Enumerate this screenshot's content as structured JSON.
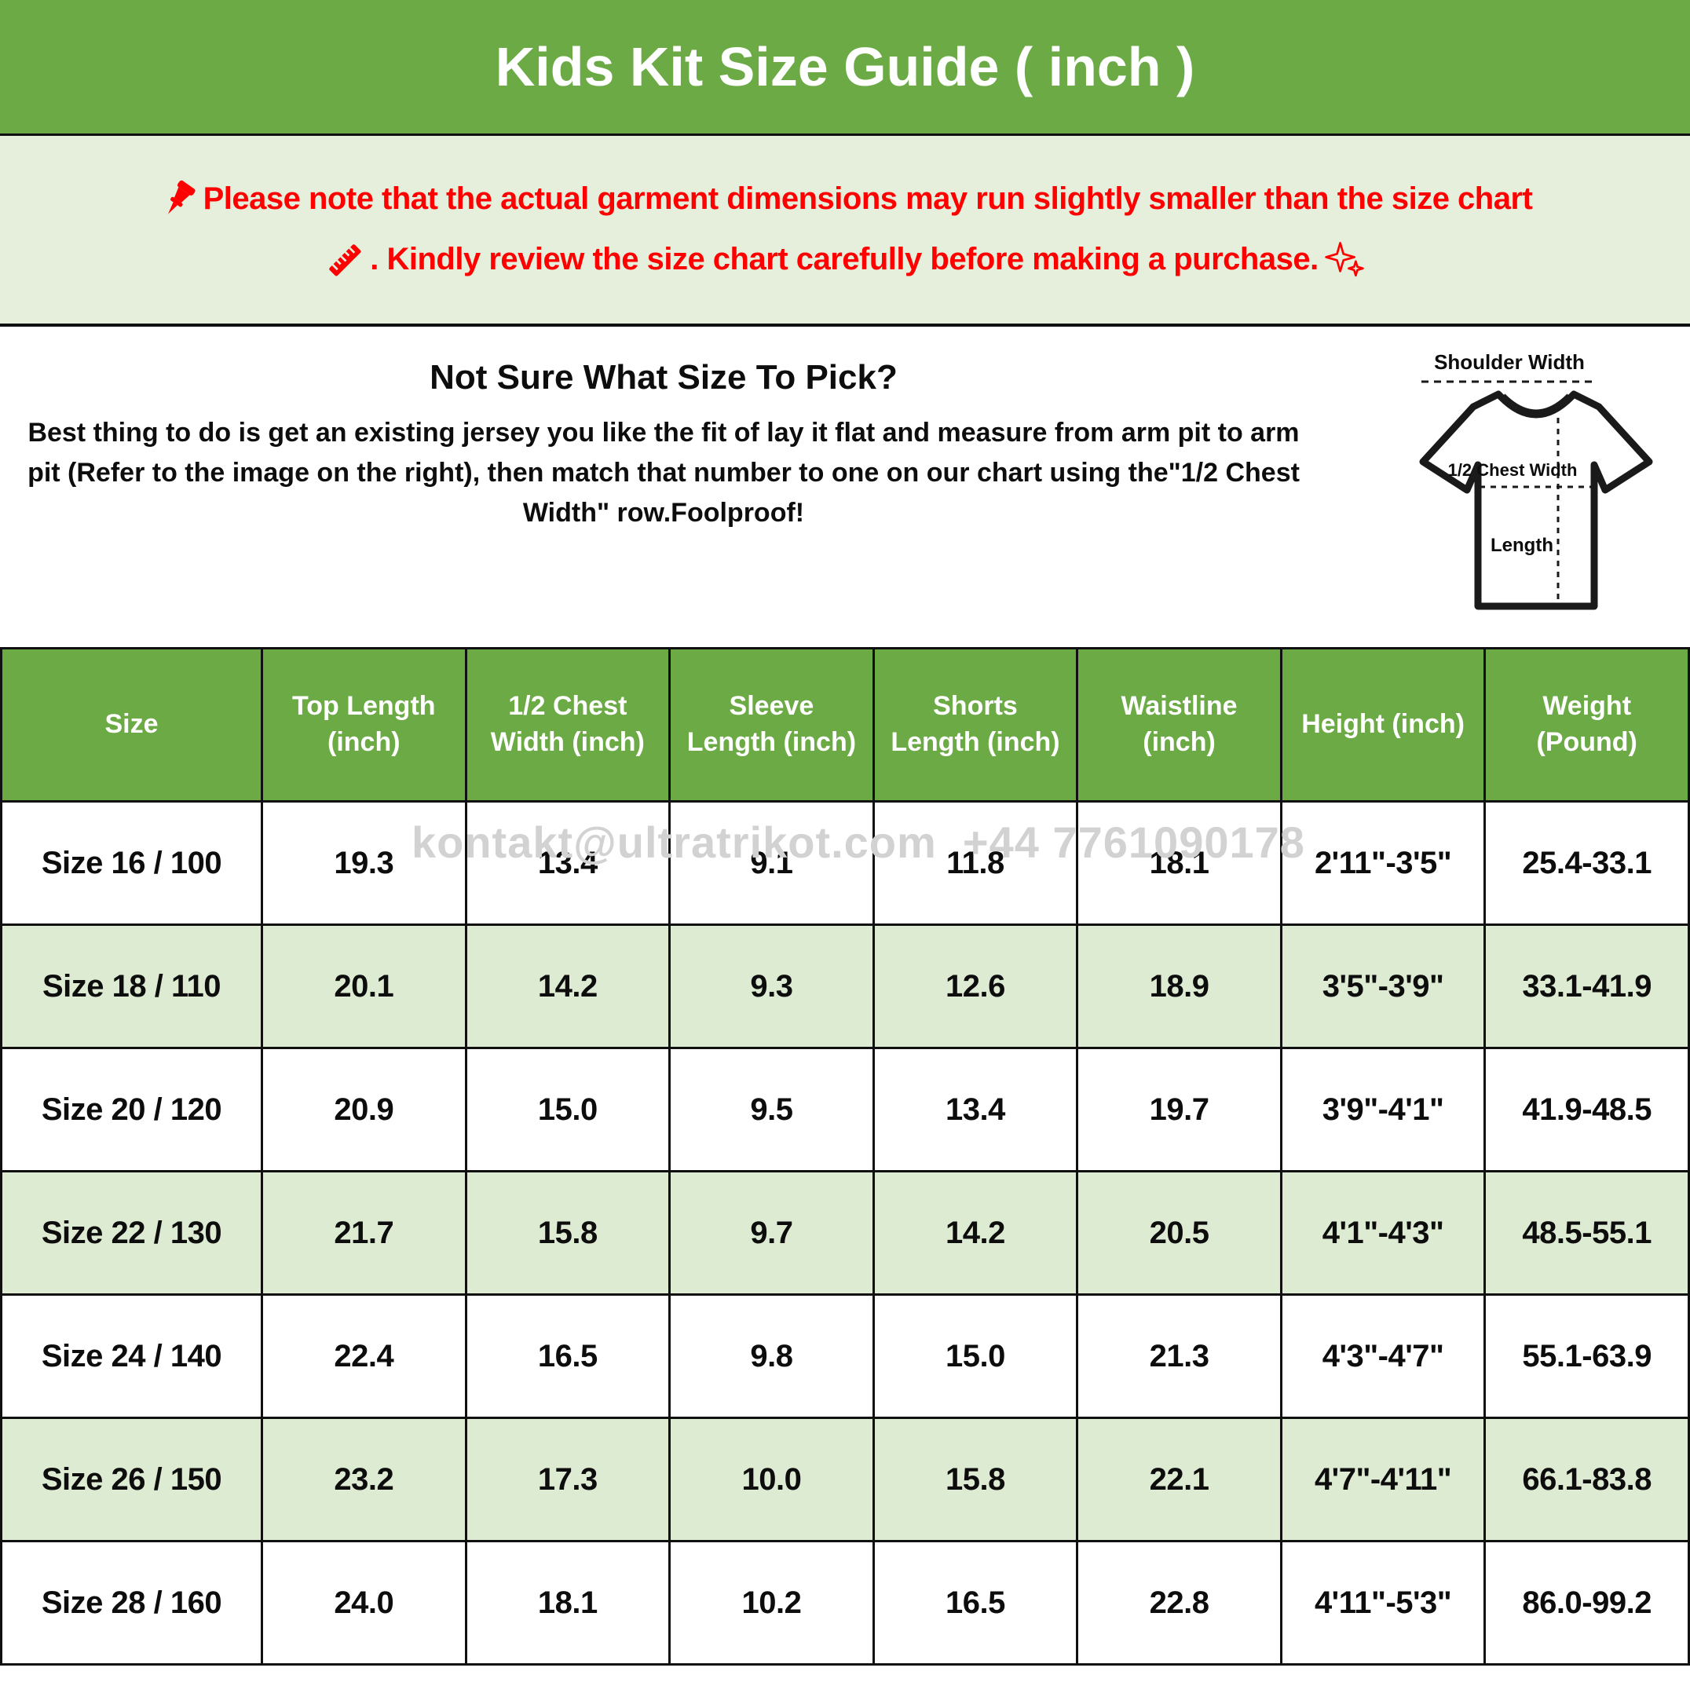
{
  "page": {
    "title": "Kids Kit Size Guide ( inch )"
  },
  "notice": {
    "line1": "Please note that the actual garment dimensions may run slightly smaller than the size chart",
    "line2": ". Kindly review the size chart carefully before making a purchase."
  },
  "info": {
    "heading": "Not Sure What Size To Pick?",
    "body": "Best thing to do is get an existing jersey you like the fit of lay it flat and measure from arm pit to arm pit (Refer to the image on the right), then match that number to one on our chart using the\"1/2 Chest Width\" row.Foolproof!"
  },
  "diagram": {
    "shoulder_label": "Shoulder Width",
    "chest_label": "1/2 Chest Width",
    "length_label": "Length"
  },
  "watermark": "kontakt@ultratrikot.com  +44 7761090178",
  "colors": {
    "header_green": "#6caa46",
    "notice_bg": "#e5efdc",
    "row_alt_bg": "#deebd3",
    "accent_red": "#fe0000",
    "watermark_gray": "#d2d2d2"
  },
  "size_table": {
    "columns": [
      "Size",
      "Top Length (inch)",
      "1/2 Chest Width (inch)",
      "Sleeve Length (inch)",
      "Shorts Length (inch)",
      "Waistline (inch)",
      "Height (inch)",
      "Weight (Pound)"
    ],
    "rows": [
      [
        "Size 16 / 100",
        "19.3",
        "13.4",
        "9.1",
        "11.8",
        "18.1",
        "2'11\"-3'5\"",
        "25.4-33.1"
      ],
      [
        "Size 18 / 110",
        "20.1",
        "14.2",
        "9.3",
        "12.6",
        "18.9",
        "3'5\"-3'9\"",
        "33.1-41.9"
      ],
      [
        "Size 20 / 120",
        "20.9",
        "15.0",
        "9.5",
        "13.4",
        "19.7",
        "3'9\"-4'1\"",
        "41.9-48.5"
      ],
      [
        "Size 22 / 130",
        "21.7",
        "15.8",
        "9.7",
        "14.2",
        "20.5",
        "4'1\"-4'3\"",
        "48.5-55.1"
      ],
      [
        "Size 24 / 140",
        "22.4",
        "16.5",
        "9.8",
        "15.0",
        "21.3",
        "4'3\"-4'7\"",
        "55.1-63.9"
      ],
      [
        "Size 26 / 150",
        "23.2",
        "17.3",
        "10.0",
        "15.8",
        "22.1",
        "4'7\"-4'11\"",
        "66.1-83.8"
      ],
      [
        "Size 28 / 160",
        "24.0",
        "18.1",
        "10.2",
        "16.5",
        "22.8",
        "4'11\"-5'3\"",
        "86.0-99.2"
      ]
    ]
  }
}
